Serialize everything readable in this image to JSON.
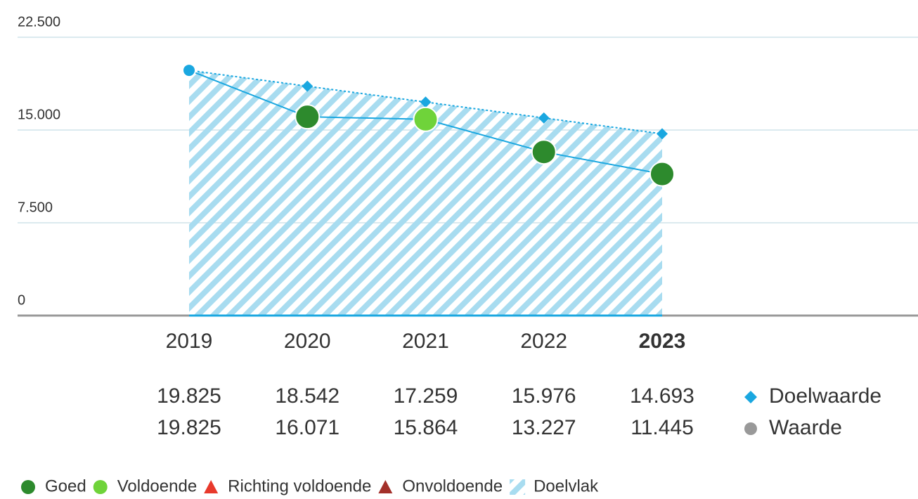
{
  "chart_data": {
    "type": "line",
    "categories": [
      "2019",
      "2020",
      "2021",
      "2022",
      "2023"
    ],
    "highlight_index": 4,
    "ylim": [
      0,
      22500
    ],
    "yticks": [
      {
        "value": 0,
        "label": "0"
      },
      {
        "value": 7500,
        "label": "7.500"
      },
      {
        "value": 15000,
        "label": "15.000"
      },
      {
        "value": 22500,
        "label": "22.500"
      }
    ],
    "grid": true,
    "series": [
      {
        "name": "Doelwaarde",
        "color": "#1aa7e0",
        "marker": "diamond",
        "line": "dotted",
        "values": [
          19825,
          18542,
          17259,
          15976,
          14693
        ],
        "value_labels": [
          "19.825",
          "18.542",
          "17.259",
          "15.976",
          "14.693"
        ]
      },
      {
        "name": "Waarde",
        "color": "#1aa7e0",
        "legend_color": "#999999",
        "marker": "circle",
        "line": "solid",
        "point_colors": [
          null,
          "#2d8a2d",
          "#6fd33a",
          "#2d8a2d",
          "#2d8a2d"
        ],
        "values": [
          19825,
          16071,
          15864,
          13227,
          11445
        ],
        "value_labels": [
          "19.825",
          "16.071",
          "15.864",
          "13.227",
          "11.445"
        ]
      }
    ],
    "area": {
      "name": "Doelvlak",
      "color": "#a8dcf0",
      "series_index": 0
    },
    "status_legend": [
      {
        "name": "Goed",
        "color": "#2d8a2d",
        "marker": "circle"
      },
      {
        "name": "Voldoende",
        "color": "#6fd33a",
        "marker": "circle"
      },
      {
        "name": "Richting voldoende",
        "color": "#e8392b",
        "marker": "triangle"
      },
      {
        "name": "Onvoldoende",
        "color": "#a3302a",
        "marker": "triangle"
      },
      {
        "name": "Doelvlak",
        "color": "#a8dcf0",
        "marker": "hatch"
      }
    ]
  }
}
